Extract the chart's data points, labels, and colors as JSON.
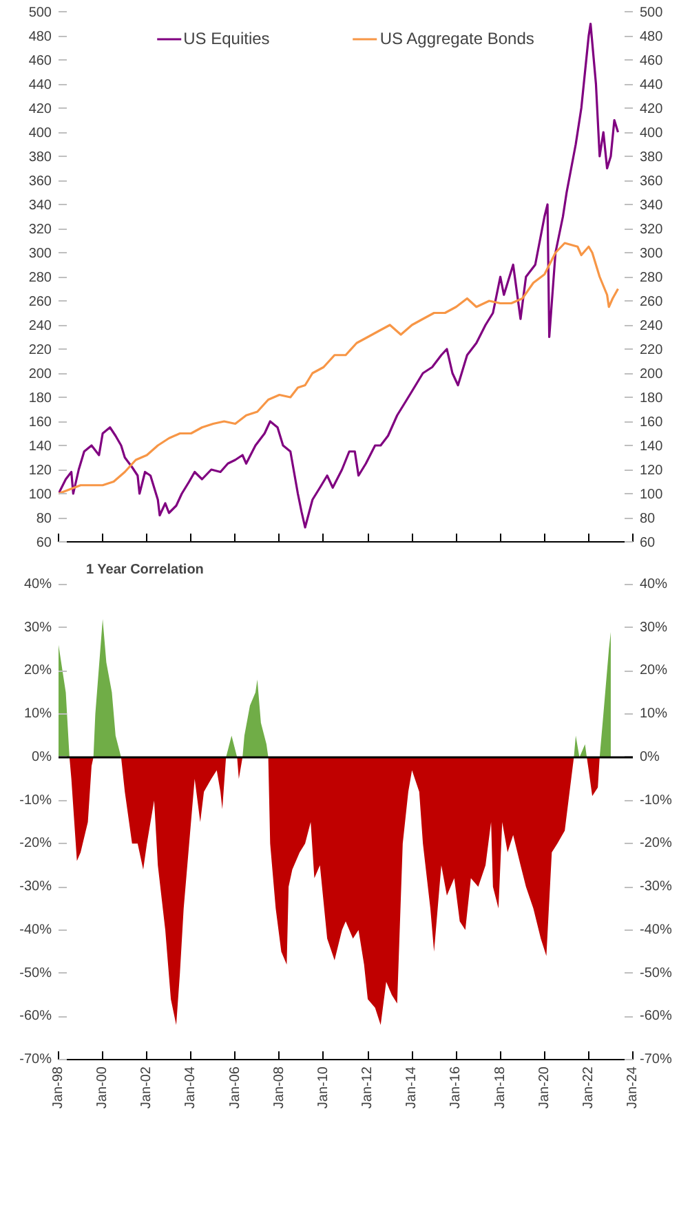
{
  "chart_data": [
    {
      "type": "line",
      "legend": "top",
      "tick_labels": "y",
      "grid": false,
      "xlim": [
        "1998-01",
        "2024-01"
      ],
      "xticks": [
        {
          "value": "1998-01",
          "label": null
        },
        {
          "value": "2000-01",
          "label": null
        },
        {
          "value": "2002-01",
          "label": null
        },
        {
          "value": "2004-01",
          "label": null
        },
        {
          "value": "2006-01",
          "label": null
        },
        {
          "value": "2008-01",
          "label": null
        },
        {
          "value": "2010-01",
          "label": null
        },
        {
          "value": "2012-01",
          "label": null
        },
        {
          "value": "2014-01",
          "label": null
        },
        {
          "value": "2016-01",
          "label": null
        },
        {
          "value": "2018-01",
          "label": null
        },
        {
          "value": "2020-01",
          "label": null
        },
        {
          "value": "2022-01",
          "label": null
        },
        {
          "value": "2024-01",
          "label": null
        }
      ],
      "ylim": [
        60,
        500
      ],
      "yticks": [
        60,
        80,
        100,
        120,
        140,
        160,
        180,
        200,
        220,
        240,
        260,
        280,
        300,
        320,
        340,
        360,
        380,
        400,
        420,
        440,
        460,
        480,
        500
      ],
      "y2lim": [
        60,
        500
      ],
      "y2ticks": [
        60,
        80,
        100,
        120,
        140,
        160,
        180,
        200,
        220,
        240,
        260,
        280,
        300,
        320,
        340,
        360,
        380,
        400,
        420,
        440,
        460,
        480,
        500
      ],
      "series": [
        {
          "name": "US Equities",
          "color": "#800080",
          "x": [
            "1998-01",
            "1998-05",
            "1998-08",
            "1998-09",
            "1998-12",
            "1999-03",
            "1999-07",
            "1999-11",
            "2000-01",
            "2000-05",
            "2000-08",
            "2000-11",
            "2001-01",
            "2001-05",
            "2001-08",
            "2001-09",
            "2001-12",
            "2002-03",
            "2002-07",
            "2002-08",
            "2002-11",
            "2003-01",
            "2003-05",
            "2003-08",
            "2003-12",
            "2004-03",
            "2004-07",
            "2004-12",
            "2005-05",
            "2005-09",
            "2006-01",
            "2006-05",
            "2006-07",
            "2006-12",
            "2007-05",
            "2007-08",
            "2007-12",
            "2008-03",
            "2008-07",
            "2008-11",
            "2009-01",
            "2009-03",
            "2009-07",
            "2009-11",
            "2010-03",
            "2010-06",
            "2010-11",
            "2011-03",
            "2011-06",
            "2011-08",
            "2011-12",
            "2012-05",
            "2012-08",
            "2012-12",
            "2013-05",
            "2013-09",
            "2014-01",
            "2014-07",
            "2014-12",
            "2015-05",
            "2015-08",
            "2015-11",
            "2016-02",
            "2016-07",
            "2016-12",
            "2017-05",
            "2017-09",
            "2018-01",
            "2018-03",
            "2018-08",
            "2018-12",
            "2019-03",
            "2019-08",
            "2020-01",
            "2020-02-20",
            "2020-03-20",
            "2020-07",
            "2020-11",
            "2021-01",
            "2021-06",
            "2021-09",
            "2022-01",
            "2022-02",
            "2022-05",
            "2022-07",
            "2022-09",
            "2022-11",
            "2023-01",
            "2023-03",
            "2023-05"
          ],
          "values": [
            100,
            112,
            118,
            100,
            120,
            135,
            140,
            132,
            150,
            155,
            148,
            140,
            130,
            122,
            115,
            100,
            118,
            115,
            95,
            82,
            92,
            84,
            90,
            100,
            110,
            118,
            112,
            120,
            118,
            125,
            128,
            132,
            125,
            140,
            150,
            160,
            155,
            140,
            135,
            100,
            85,
            72,
            95,
            105,
            115,
            105,
            120,
            135,
            135,
            115,
            125,
            140,
            140,
            148,
            165,
            175,
            185,
            200,
            205,
            215,
            220,
            200,
            190,
            215,
            225,
            240,
            250,
            280,
            265,
            290,
            245,
            280,
            290,
            330,
            340,
            230,
            300,
            330,
            350,
            390,
            420,
            480,
            490,
            440,
            380,
            400,
            370,
            380,
            410,
            400
          ]
        },
        {
          "name": "US Aggregate Bonds",
          "color": "#f79646",
          "x": [
            "1998-01",
            "1999-01",
            "2000-01",
            "2000-07",
            "2001-01",
            "2001-07",
            "2002-01",
            "2002-07",
            "2003-01",
            "2003-07",
            "2004-01",
            "2004-07",
            "2005-01",
            "2005-07",
            "2006-01",
            "2006-07",
            "2007-01",
            "2007-07",
            "2008-01",
            "2008-07",
            "2008-11",
            "2009-03",
            "2009-07",
            "2010-01",
            "2010-07",
            "2011-01",
            "2011-07",
            "2012-01",
            "2012-07",
            "2013-01",
            "2013-07",
            "2014-01",
            "2014-07",
            "2015-01",
            "2015-07",
            "2016-01",
            "2016-07",
            "2016-12",
            "2017-07",
            "2018-01",
            "2018-07",
            "2019-01",
            "2019-07",
            "2020-01",
            "2020-07",
            "2020-12",
            "2021-07",
            "2021-09",
            "2022-01",
            "2022-03",
            "2022-07",
            "2022-11",
            "2022-12",
            "2023-02",
            "2023-05"
          ],
          "values": [
            100,
            107,
            107,
            110,
            118,
            128,
            132,
            140,
            146,
            150,
            150,
            155,
            158,
            160,
            158,
            165,
            168,
            178,
            182,
            180,
            188,
            190,
            200,
            205,
            215,
            215,
            225,
            230,
            235,
            240,
            232,
            240,
            245,
            250,
            250,
            255,
            262,
            255,
            260,
            258,
            258,
            262,
            275,
            282,
            300,
            308,
            305,
            298,
            305,
            300,
            280,
            265,
            255,
            262,
            270
          ]
        }
      ]
    },
    {
      "type": "area",
      "title": "1 Year Correlation",
      "grid": false,
      "xlim": [
        "1998-01",
        "2024-01"
      ],
      "xticks": [
        {
          "value": "1998-01",
          "label": "Jan-98"
        },
        {
          "value": "2000-01",
          "label": "Jan-00"
        },
        {
          "value": "2002-01",
          "label": "Jan-02"
        },
        {
          "value": "2004-01",
          "label": "Jan-04"
        },
        {
          "value": "2006-01",
          "label": "Jan-06"
        },
        {
          "value": "2008-01",
          "label": "Jan-08"
        },
        {
          "value": "2010-01",
          "label": "Jan-10"
        },
        {
          "value": "2012-01",
          "label": "Jan-12"
        },
        {
          "value": "2014-01",
          "label": "Jan-14"
        },
        {
          "value": "2016-01",
          "label": "Jan-16"
        },
        {
          "value": "2018-01",
          "label": "Jan-18"
        },
        {
          "value": "2020-01",
          "label": "Jan-20"
        },
        {
          "value": "2022-01",
          "label": "Jan-22"
        },
        {
          "value": "2024-01",
          "label": "Jan-24"
        }
      ],
      "ylim": [
        -70,
        40
      ],
      "yticks": [
        {
          "value": -70,
          "label": "-70%"
        },
        {
          "value": -60,
          "label": "-60%"
        },
        {
          "value": -50,
          "label": "-50%"
        },
        {
          "value": -40,
          "label": "-40%"
        },
        {
          "value": -30,
          "label": "-30%"
        },
        {
          "value": -20,
          "label": "-20%"
        },
        {
          "value": -10,
          "label": "-10%"
        },
        {
          "value": 0,
          "label": "0%"
        },
        {
          "value": 10,
          "label": "10%"
        },
        {
          "value": 20,
          "label": "20%"
        },
        {
          "value": 30,
          "label": "30%"
        },
        {
          "value": 40,
          "label": "40%"
        }
      ],
      "y2lim": [
        -70,
        40
      ],
      "y2ticks": [
        {
          "value": -70,
          "label": "-70%"
        },
        {
          "value": -60,
          "label": "-60%"
        },
        {
          "value": -50,
          "label": "-50%"
        },
        {
          "value": -40,
          "label": "-40%"
        },
        {
          "value": -30,
          "label": "-30%"
        },
        {
          "value": -20,
          "label": "-20%"
        },
        {
          "value": -10,
          "label": "-10%"
        },
        {
          "value": 0,
          "label": "0%"
        },
        {
          "value": 10,
          "label": "10%"
        },
        {
          "value": 20,
          "label": "20%"
        },
        {
          "value": 30,
          "label": "30%"
        },
        {
          "value": 40,
          "label": "40%"
        }
      ],
      "ref_lines": [
        {
          "axis": "y",
          "value": 0,
          "color": "#000000"
        }
      ],
      "x": [
        "1998-01",
        "1998-05",
        "1998-07",
        "1998-08",
        "1998-11",
        "1999-01",
        "1999-05",
        "1999-07",
        "1999-08",
        "1999-09",
        "2000-01",
        "2000-03",
        "2000-06",
        "2000-08",
        "2000-11",
        "2001-01",
        "2001-05",
        "2001-08",
        "2001-11",
        "2002-01",
        "2002-05",
        "2002-07",
        "2002-11",
        "2003-02",
        "2003-05",
        "2003-07",
        "2003-09",
        "2003-12",
        "2004-03",
        "2004-06",
        "2004-08",
        "2004-12",
        "2005-03",
        "2005-05",
        "2005-06",
        "2005-08",
        "2005-11",
        "2006-02",
        "2006-03",
        "2006-05",
        "2006-06",
        "2006-09",
        "2006-12",
        "2007-01",
        "2007-03",
        "2007-06",
        "2007-07",
        "2007-08",
        "2007-11",
        "2008-02",
        "2008-05",
        "2008-06",
        "2008-08",
        "2008-12",
        "2009-03",
        "2009-06",
        "2009-08",
        "2009-11",
        "2010-03",
        "2010-07",
        "2010-11",
        "2011-01",
        "2011-05",
        "2011-08",
        "2011-11",
        "2012-01",
        "2012-05",
        "2012-08",
        "2012-11",
        "2013-02",
        "2013-05",
        "2013-08",
        "2013-11",
        "2014-01",
        "2014-05",
        "2014-07",
        "2014-11",
        "2015-01",
        "2015-05",
        "2015-08",
        "2015-12",
        "2016-03",
        "2016-06",
        "2016-09",
        "2017-01",
        "2017-05",
        "2017-08",
        "2017-09",
        "2017-12",
        "2018-02",
        "2018-05",
        "2018-08",
        "2018-12",
        "2019-03",
        "2019-07",
        "2019-11",
        "2020-02",
        "2020-05",
        "2020-08",
        "2020-12",
        "2021-02",
        "2021-05",
        "2021-06",
        "2021-08",
        "2021-11",
        "2021-12",
        "2022-01",
        "2022-03",
        "2022-06",
        "2022-07",
        "2022-09",
        "2022-12",
        "2023-01"
      ],
      "series": [
        {
          "color": "#70ad47",
          "values": [
            26,
            15,
            0,
            null,
            null,
            null,
            null,
            null,
            0,
            10,
            32,
            22,
            15,
            5,
            0,
            null,
            null,
            null,
            null,
            null,
            null,
            null,
            null,
            null,
            null,
            null,
            null,
            null,
            null,
            null,
            null,
            null,
            null,
            null,
            null,
            0,
            5,
            0,
            null,
            0,
            5,
            12,
            15,
            18,
            8,
            3,
            0,
            null,
            null,
            null,
            null,
            null,
            null,
            null,
            null,
            null,
            null,
            null,
            null,
            null,
            null,
            null,
            null,
            null,
            null,
            null,
            null,
            null,
            null,
            null,
            null,
            null,
            null,
            null,
            null,
            null,
            null,
            null,
            null,
            null,
            null,
            null,
            null,
            null,
            null,
            null,
            null,
            null,
            null,
            null,
            null,
            null,
            null,
            null,
            null,
            null,
            null,
            null,
            null,
            null,
            null,
            0,
            5,
            0,
            3,
            0,
            null,
            null,
            null,
            0,
            10,
            25,
            29
          ]
        },
        {
          "color": "#c00000",
          "values": [
            null,
            null,
            0,
            -5,
            -24,
            -22,
            -15,
            -2,
            0,
            null,
            null,
            null,
            null,
            null,
            0,
            -8,
            -20,
            -20,
            -26,
            -20,
            -10,
            -25,
            -40,
            -56,
            -62,
            -50,
            -35,
            -20,
            -5,
            -15,
            -8,
            -5,
            -3,
            -8,
            -12,
            0,
            null,
            0,
            -5,
            0,
            null,
            null,
            null,
            null,
            null,
            null,
            0,
            -20,
            -35,
            -45,
            -48,
            -30,
            -26,
            -22,
            -20,
            -15,
            -28,
            -25,
            -42,
            -47,
            -40,
            -38,
            -42,
            -40,
            -48,
            -56,
            -58,
            -62,
            -52,
            -55,
            -57,
            -20,
            -8,
            -3,
            -8,
            -20,
            -35,
            -45,
            -25,
            -32,
            -28,
            -38,
            -40,
            -28,
            -30,
            -25,
            -15,
            -30,
            -35,
            -15,
            -22,
            -18,
            -25,
            -30,
            -35,
            -42,
            -46,
            -22,
            -20,
            -17,
            -10,
            0,
            null,
            0,
            null,
            0,
            -3,
            -9,
            -7,
            0,
            null,
            null,
            null
          ]
        }
      ]
    }
  ]
}
